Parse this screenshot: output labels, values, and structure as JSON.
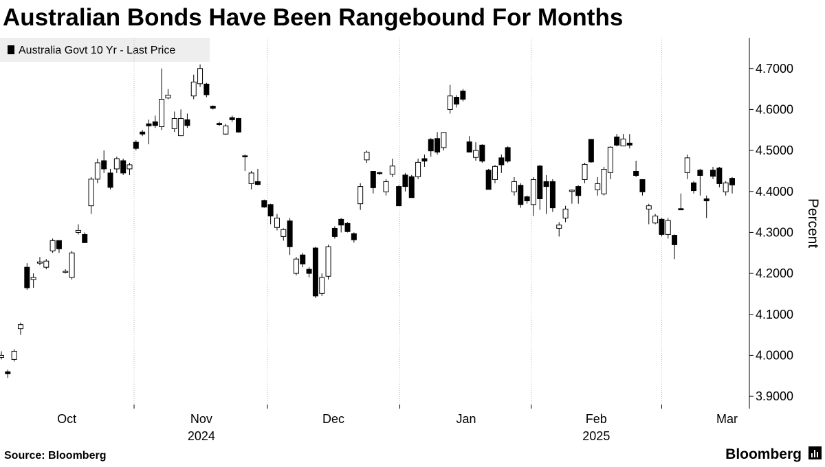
{
  "chart_data": {
    "type": "candlestick",
    "title": "Australian Bonds Have Been Rangebound For Months",
    "series_name": "Australia Govt 10 Yr - Last Price",
    "y_label": "Percent",
    "source": "Source: Bloomberg",
    "brand": "Bloomberg",
    "up_color": "#ffffff",
    "down_color": "#000000",
    "ylim": [
      3.87,
      4.775
    ],
    "yticks": [
      {
        "value": 3.9,
        "label": "3.9000"
      },
      {
        "value": 4.0,
        "label": "4.0000"
      },
      {
        "value": 4.1,
        "label": "4.1000"
      },
      {
        "value": 4.2,
        "label": "4.2000"
      },
      {
        "value": 4.3,
        "label": "4.3000"
      },
      {
        "value": 4.4,
        "label": "4.4000"
      },
      {
        "value": 4.5,
        "label": "4.5000"
      },
      {
        "value": 4.6,
        "label": "4.6000"
      },
      {
        "value": 4.7,
        "label": "4.7000"
      }
    ],
    "xticks": [
      {
        "value": 10.2,
        "label": "Oct"
      },
      {
        "value": 31.2,
        "label": "Nov"
      },
      {
        "value": 51.8,
        "label": "Dec"
      },
      {
        "value": 72.5,
        "label": "Jan"
      },
      {
        "value": 92.8,
        "label": "Feb"
      },
      {
        "value": 113.2,
        "label": "Mar"
      }
    ],
    "x_year_labels": [
      {
        "value": 31.2,
        "label": "2024"
      },
      {
        "value": 92.8,
        "label": "2025"
      }
    ],
    "open": [
      3.995,
      3.96,
      3.99,
      4.065,
      4.215,
      4.185,
      4.225,
      4.215,
      4.255,
      4.28,
      4.205,
      4.19,
      4.3,
      4.295,
      4.365,
      4.43,
      4.475,
      4.445,
      4.455,
      4.475,
      4.455,
      4.52,
      4.545,
      4.565,
      4.57,
      4.558,
      4.628,
      4.553,
      4.536,
      4.575,
      4.633,
      4.663,
      4.662,
      4.608,
      4.566,
      4.54,
      4.58,
      4.578,
      4.487,
      4.419,
      4.424,
      4.378,
      4.368,
      4.312,
      4.29,
      4.328,
      4.2,
      4.245,
      4.21,
      4.262,
      4.151,
      4.193,
      4.31,
      4.332,
      4.322,
      4.297,
      4.37,
      4.477,
      4.449,
      4.446,
      4.399,
      4.442,
      4.412,
      4.44,
      4.436,
      4.436,
      4.48,
      4.527,
      4.529,
      4.507,
      4.6,
      4.63,
      4.645,
      4.521,
      4.483,
      4.513,
      4.452,
      4.429,
      4.482,
      4.507,
      4.399,
      4.415,
      4.387,
      4.368,
      4.462,
      4.424,
      4.424,
      4.31,
      4.335,
      4.4,
      4.412,
      4.429,
      4.527,
      4.404,
      4.394,
      4.446,
      4.533,
      4.511,
      4.518,
      4.449,
      4.429,
      4.357,
      4.323,
      4.332,
      4.295,
      4.293,
      4.358,
      4.446,
      4.421,
      4.452,
      4.382,
      4.452,
      4.457,
      4.399,
      4.432
    ],
    "high": [
      4.01,
      3.965,
      4.015,
      4.08,
      4.225,
      4.2,
      4.24,
      4.235,
      4.285,
      4.28,
      4.21,
      4.255,
      4.32,
      4.3,
      4.435,
      4.48,
      4.5,
      4.455,
      4.485,
      4.48,
      4.47,
      4.525,
      4.55,
      4.575,
      4.585,
      4.7,
      4.65,
      4.595,
      4.6,
      4.59,
      4.685,
      4.71,
      4.665,
      4.61,
      4.57,
      4.565,
      4.585,
      4.58,
      4.49,
      4.45,
      4.455,
      4.38,
      4.37,
      4.345,
      4.31,
      4.335,
      4.24,
      4.25,
      4.215,
      4.265,
      4.2,
      4.27,
      4.315,
      4.335,
      4.325,
      4.3,
      4.42,
      4.5,
      4.45,
      4.448,
      4.43,
      4.48,
      4.415,
      4.445,
      4.44,
      4.48,
      4.49,
      4.53,
      4.545,
      4.545,
      4.66,
      4.635,
      4.65,
      4.535,
      4.52,
      4.515,
      4.455,
      4.465,
      4.49,
      4.51,
      4.435,
      4.42,
      4.39,
      4.435,
      4.465,
      4.44,
      4.43,
      4.325,
      4.365,
      4.405,
      4.415,
      4.47,
      4.528,
      4.435,
      4.46,
      4.51,
      4.54,
      4.54,
      4.54,
      4.475,
      4.43,
      4.37,
      4.345,
      4.335,
      4.335,
      4.295,
      4.395,
      4.49,
      4.425,
      4.455,
      4.39,
      4.46,
      4.46,
      4.425,
      4.435
    ],
    "low": [
      3.99,
      3.945,
      3.985,
      4.05,
      4.16,
      4.165,
      4.22,
      4.21,
      4.25,
      4.25,
      4.2,
      4.185,
      4.295,
      4.275,
      4.345,
      4.42,
      4.445,
      4.405,
      4.445,
      4.44,
      4.44,
      4.5,
      4.535,
      4.515,
      4.555,
      4.55,
      4.625,
      4.545,
      4.535,
      4.555,
      4.625,
      4.655,
      4.63,
      4.6,
      4.56,
      4.538,
      4.57,
      4.543,
      4.45,
      4.405,
      4.415,
      4.36,
      4.32,
      4.305,
      4.28,
      4.245,
      4.195,
      4.215,
      4.19,
      4.14,
      4.145,
      4.185,
      4.285,
      4.3,
      4.3,
      4.275,
      4.355,
      4.47,
      4.395,
      4.44,
      4.39,
      4.435,
      4.365,
      4.4,
      4.385,
      4.43,
      4.46,
      4.485,
      4.49,
      4.5,
      4.59,
      4.605,
      4.62,
      4.495,
      4.475,
      4.47,
      4.405,
      4.42,
      4.445,
      4.47,
      4.39,
      4.36,
      4.37,
      4.34,
      4.355,
      4.345,
      4.35,
      4.29,
      4.325,
      4.37,
      4.37,
      4.42,
      4.47,
      4.39,
      4.39,
      4.43,
      4.51,
      4.51,
      4.505,
      4.435,
      4.39,
      4.32,
      4.32,
      4.29,
      4.285,
      4.235,
      4.355,
      4.43,
      4.395,
      4.39,
      4.335,
      4.43,
      4.41,
      4.39,
      4.395
    ],
    "close": [
      4.0,
      3.955,
      4.01,
      4.075,
      4.165,
      4.19,
      4.228,
      4.23,
      4.28,
      4.26,
      4.205,
      4.25,
      4.305,
      4.275,
      4.43,
      4.47,
      4.455,
      4.41,
      4.48,
      4.445,
      4.465,
      4.505,
      4.54,
      4.56,
      4.561,
      4.625,
      4.635,
      4.578,
      4.578,
      4.561,
      4.667,
      4.7,
      4.636,
      4.603,
      4.563,
      4.56,
      4.575,
      4.545,
      4.485,
      4.445,
      4.417,
      4.362,
      4.34,
      4.335,
      4.307,
      4.265,
      4.235,
      4.223,
      4.2,
      4.145,
      4.19,
      4.265,
      4.29,
      4.318,
      4.302,
      4.282,
      4.412,
      4.496,
      4.409,
      4.444,
      4.424,
      4.462,
      4.365,
      4.412,
      4.385,
      4.471,
      4.474,
      4.499,
      4.496,
      4.544,
      4.633,
      4.613,
      4.625,
      4.496,
      4.5,
      4.474,
      4.405,
      4.461,
      4.465,
      4.474,
      4.424,
      4.368,
      4.377,
      4.429,
      4.382,
      4.412,
      4.36,
      4.318,
      4.357,
      4.403,
      4.39,
      4.466,
      4.472,
      4.419,
      4.454,
      4.508,
      4.513,
      4.528,
      4.513,
      4.439,
      4.399,
      4.365,
      4.34,
      4.295,
      4.329,
      4.27,
      4.355,
      4.482,
      4.402,
      4.439,
      4.377,
      4.437,
      4.419,
      4.421,
      4.416
    ]
  }
}
